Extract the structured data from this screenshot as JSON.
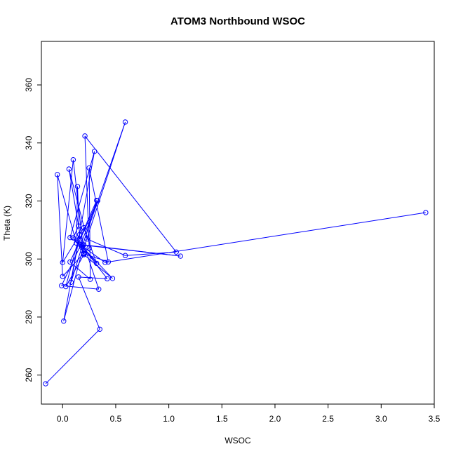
{
  "chart_data": {
    "type": "line",
    "title": "ATOM3 Northbound WSOC",
    "xlabel": "WSOC",
    "ylabel": "Theta (K)",
    "xlim": [
      -0.2,
      3.5
    ],
    "ylim": [
      250,
      375
    ],
    "x_ticks": [
      0.0,
      0.5,
      1.0,
      1.5,
      2.0,
      2.5,
      3.0,
      3.5
    ],
    "x_tick_labels": [
      "0.0",
      "0.5",
      "1.0",
      "1.5",
      "2.0",
      "2.5",
      "3.0",
      "3.5"
    ],
    "y_ticks": [
      260,
      280,
      300,
      320,
      340,
      360
    ],
    "y_tick_labels": [
      "260",
      "280",
      "300",
      "320",
      "340",
      "360"
    ],
    "grid": false,
    "colors": {
      "series": "#0000ff",
      "axis": "#000000"
    },
    "series": [
      {
        "marker": "open-circle",
        "points": [
          {
            "x": -0.16,
            "y": 257.0
          },
          {
            "x": 0.35,
            "y": 275.8
          },
          {
            "x": 0.15,
            "y": 293.8
          },
          {
            "x": 0.42,
            "y": 293.2
          },
          {
            "x": 0.18,
            "y": 304.6
          },
          {
            "x": 0.32,
            "y": 298.5
          },
          {
            "x": 0.2,
            "y": 310.8
          },
          {
            "x": 0.0,
            "y": 298.8
          },
          {
            "x": 0.1,
            "y": 334.2
          },
          {
            "x": 0.2,
            "y": 301.8
          },
          {
            "x": 0.43,
            "y": 299.0
          },
          {
            "x": 0.25,
            "y": 331.4
          },
          {
            "x": 0.26,
            "y": 293.0
          },
          {
            "x": 0.07,
            "y": 299.0
          },
          {
            "x": 0.33,
            "y": 320.1
          },
          {
            "x": 0.17,
            "y": 305.0
          },
          {
            "x": 1.11,
            "y": 301.0
          },
          {
            "x": 0.19,
            "y": 304.8
          },
          {
            "x": 0.32,
            "y": 320.2
          },
          {
            "x": 0.16,
            "y": 306.8
          },
          {
            "x": 0.14,
            "y": 325.0
          },
          {
            "x": 0.13,
            "y": 305.5
          },
          {
            "x": -0.05,
            "y": 329.1
          },
          {
            "x": 0.0,
            "y": 294.0
          },
          {
            "x": 0.2,
            "y": 302.0
          },
          {
            "x": 0.25,
            "y": 303.8
          },
          {
            "x": 0.21,
            "y": 342.4
          },
          {
            "x": 1.07,
            "y": 302.4
          },
          {
            "x": 0.59,
            "y": 301.2
          },
          {
            "x": 0.23,
            "y": 306.9
          },
          {
            "x": 0.06,
            "y": 331.0
          },
          {
            "x": 0.15,
            "y": 311.4
          },
          {
            "x": 0.1,
            "y": 307.3
          },
          {
            "x": 0.19,
            "y": 302.8
          },
          {
            "x": 0.59,
            "y": 347.2
          },
          {
            "x": 0.18,
            "y": 304.0
          },
          {
            "x": 0.08,
            "y": 292.0
          },
          {
            "x": 0.16,
            "y": 308.4
          },
          {
            "x": 0.03,
            "y": 290.5
          },
          {
            "x": 0.2,
            "y": 301.5
          },
          {
            "x": 0.47,
            "y": 293.3
          },
          {
            "x": 0.17,
            "y": 304.8
          },
          {
            "x": -0.01,
            "y": 290.8
          },
          {
            "x": 0.34,
            "y": 289.6
          },
          {
            "x": 0.2,
            "y": 304.9
          },
          {
            "x": 0.01,
            "y": 278.6
          },
          {
            "x": 0.3,
            "y": 337.1
          },
          {
            "x": 0.07,
            "y": 307.4
          },
          {
            "x": 0.4,
            "y": 298.8
          },
          {
            "x": 3.42,
            "y": 316.0
          }
        ]
      }
    ]
  }
}
